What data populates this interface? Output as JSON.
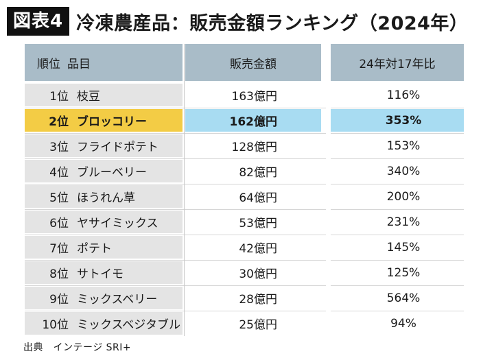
{
  "figure_label": "図表4",
  "title": "冷凍農産品：販売金額ランキング（2024年）",
  "headers": {
    "rank_item": [
      "順位",
      "品目"
    ],
    "sales": "販売金額",
    "ratio": "24年対17年比"
  },
  "highlight_rank": "2位",
  "colors": {
    "header": "#a9bcc8",
    "rank_column": "#e4e4e4",
    "highlight_rank": "#f3cc45",
    "highlight_row": "#a8dcf2"
  },
  "chart_data": {
    "type": "table",
    "title": "冷凍農産品：販売金額ランキング（2024年）",
    "columns": [
      "順位",
      "品目",
      "販売金額",
      "24年対17年比"
    ],
    "rows": [
      {
        "rank": "1位",
        "item": "枝豆",
        "sales": "163億円",
        "ratio": "116%"
      },
      {
        "rank": "2位",
        "item": "ブロッコリー",
        "sales": "162億円",
        "ratio": "353%"
      },
      {
        "rank": "3位",
        "item": "フライドポテト",
        "sales": "128億円",
        "ratio": "153%"
      },
      {
        "rank": "4位",
        "item": "ブルーベリー",
        "sales": "82億円",
        "ratio": "340%"
      },
      {
        "rank": "5位",
        "item": "ほうれん草",
        "sales": "64億円",
        "ratio": "200%"
      },
      {
        "rank": "6位",
        "item": "ヤサイミックス",
        "sales": "53億円",
        "ratio": "231%"
      },
      {
        "rank": "7位",
        "item": "ポテト",
        "sales": "42億円",
        "ratio": "145%"
      },
      {
        "rank": "8位",
        "item": "サトイモ",
        "sales": "30億円",
        "ratio": "125%"
      },
      {
        "rank": "9位",
        "item": "ミックスベリー",
        "sales": "28億円",
        "ratio": "564%"
      },
      {
        "rank": "10位",
        "item": "ミックスベジタブル",
        "sales": "25億円",
        "ratio": "94%"
      }
    ],
    "sales_values_oku_yen": [
      163,
      162,
      128,
      82,
      64,
      53,
      42,
      30,
      28,
      25
    ],
    "ratio_values_percent": [
      116,
      353,
      153,
      340,
      200,
      231,
      145,
      125,
      564,
      94
    ]
  },
  "source": "出典　インテージ SRI+"
}
